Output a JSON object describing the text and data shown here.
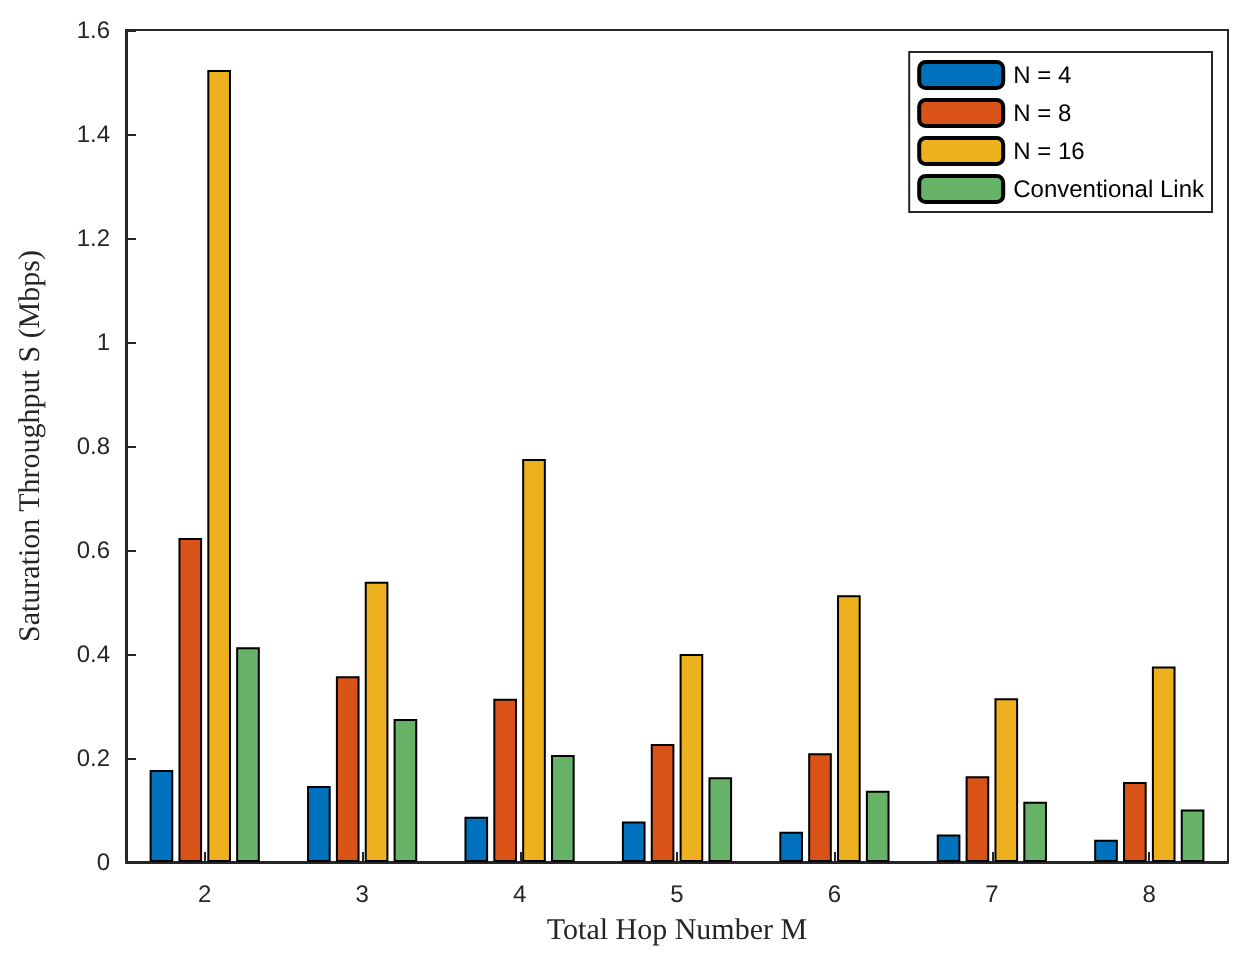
{
  "chart_data": {
    "type": "bar",
    "xlabel": "Total Hop Number M",
    "ylabel": "Saturation Throughput S (Mbps)",
    "categories": [
      "2",
      "3",
      "4",
      "5",
      "6",
      "7",
      "8"
    ],
    "series": [
      {
        "name": "N = 4",
        "color": "#0072bd",
        "values": [
          0.177,
          0.146,
          0.087,
          0.078,
          0.058,
          0.053,
          0.043
        ]
      },
      {
        "name": "N = 8",
        "color": "#d95319",
        "values": [
          0.623,
          0.357,
          0.314,
          0.227,
          0.209,
          0.165,
          0.154
        ]
      },
      {
        "name": "N = 16",
        "color": "#edb120",
        "values": [
          1.523,
          0.539,
          0.775,
          0.4,
          0.513,
          0.315,
          0.376
        ]
      },
      {
        "name": "Conventional Link",
        "color": "#66b266",
        "values": [
          0.413,
          0.275,
          0.206,
          0.163,
          0.137,
          0.116,
          0.101
        ]
      }
    ],
    "ylim": [
      0,
      1.6
    ],
    "yticks": [
      0,
      0.2,
      0.4,
      0.6,
      0.8,
      1,
      1.2,
      1.4,
      1.6
    ],
    "legend": "top right",
    "grid": false
  }
}
